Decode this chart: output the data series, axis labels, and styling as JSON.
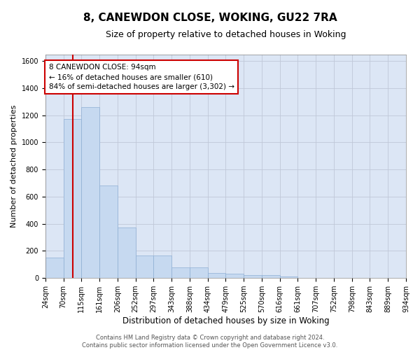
{
  "title": "8, CANEWDON CLOSE, WOKING, GU22 7RA",
  "subtitle": "Size of property relative to detached houses in Woking",
  "xlabel": "Distribution of detached houses by size in Woking",
  "ylabel": "Number of detached properties",
  "bar_values": [
    150,
    1175,
    1260,
    680,
    375,
    165,
    165,
    80,
    80,
    35,
    30,
    20,
    20,
    12,
    0,
    0,
    0,
    0,
    0,
    0
  ],
  "bar_labels": [
    "24sqm",
    "70sqm",
    "115sqm",
    "161sqm",
    "206sqm",
    "252sqm",
    "297sqm",
    "343sqm",
    "388sqm",
    "434sqm",
    "479sqm",
    "525sqm",
    "570sqm",
    "616sqm",
    "661sqm",
    "707sqm",
    "752sqm",
    "798sqm",
    "843sqm",
    "889sqm",
    "934sqm"
  ],
  "bar_color": "#c6d9f0",
  "bar_edgecolor": "#8eafd4",
  "vline_color": "#cc0000",
  "annotation_text": "8 CANEWDON CLOSE: 94sqm\n← 16% of detached houses are smaller (610)\n84% of semi-detached houses are larger (3,302) →",
  "annotation_box_color": "#cc0000",
  "annotation_facecolor": "white",
  "ylim": [
    0,
    1650
  ],
  "yticks": [
    0,
    200,
    400,
    600,
    800,
    1000,
    1200,
    1400,
    1600
  ],
  "grid_color": "#c0c8d8",
  "bg_color": "#dce6f5",
  "footer_text": "Contains HM Land Registry data © Crown copyright and database right 2024.\nContains public sector information licensed under the Open Government Licence v3.0.",
  "title_fontsize": 11,
  "subtitle_fontsize": 9,
  "xlabel_fontsize": 8.5,
  "ylabel_fontsize": 8,
  "tick_fontsize": 7,
  "annotation_fontsize": 7.5,
  "footer_fontsize": 6
}
